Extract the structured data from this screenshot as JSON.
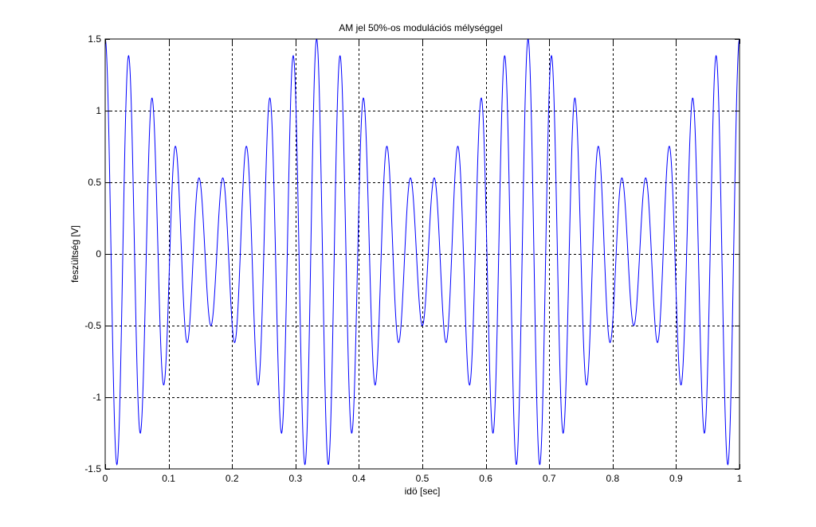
{
  "chart_data": {
    "type": "line",
    "title": "AM jel 50%-os modulációs mélységgel",
    "xlabel": "idö [sec]",
    "ylabel": "feszültség [V]",
    "xlim": [
      0,
      1
    ],
    "ylim": [
      -1.5,
      1.5
    ],
    "xticks": [
      0,
      0.1,
      0.2,
      0.3,
      0.4,
      0.5,
      0.6,
      0.7,
      0.8,
      0.9,
      1
    ],
    "yticks": [
      -1.5,
      -1,
      -0.5,
      0,
      0.5,
      1,
      1.5
    ],
    "xtick_labels": [
      "0",
      "0.1",
      "0.2",
      "0.3",
      "0.4",
      "0.5",
      "0.6",
      "0.7",
      "0.8",
      "0.9",
      "1"
    ],
    "ytick_labels": [
      "-1.5",
      "-1",
      "-0.5",
      "0",
      "0.5",
      "1",
      "1.5"
    ],
    "grid": true,
    "grid_style": "dashed",
    "series": [
      {
        "color": "#0000ff",
        "function": "(1 + 0.5*cos(2*pi*3*t)) * cos(2*pi*27*t)",
        "carrier_amplitude": 1,
        "carrier_frequency_hz": 27,
        "modulation_frequency_hz": 3,
        "modulation_depth": 0.5,
        "t_start": 0,
        "t_end": 1,
        "samples": 2001
      }
    ]
  }
}
